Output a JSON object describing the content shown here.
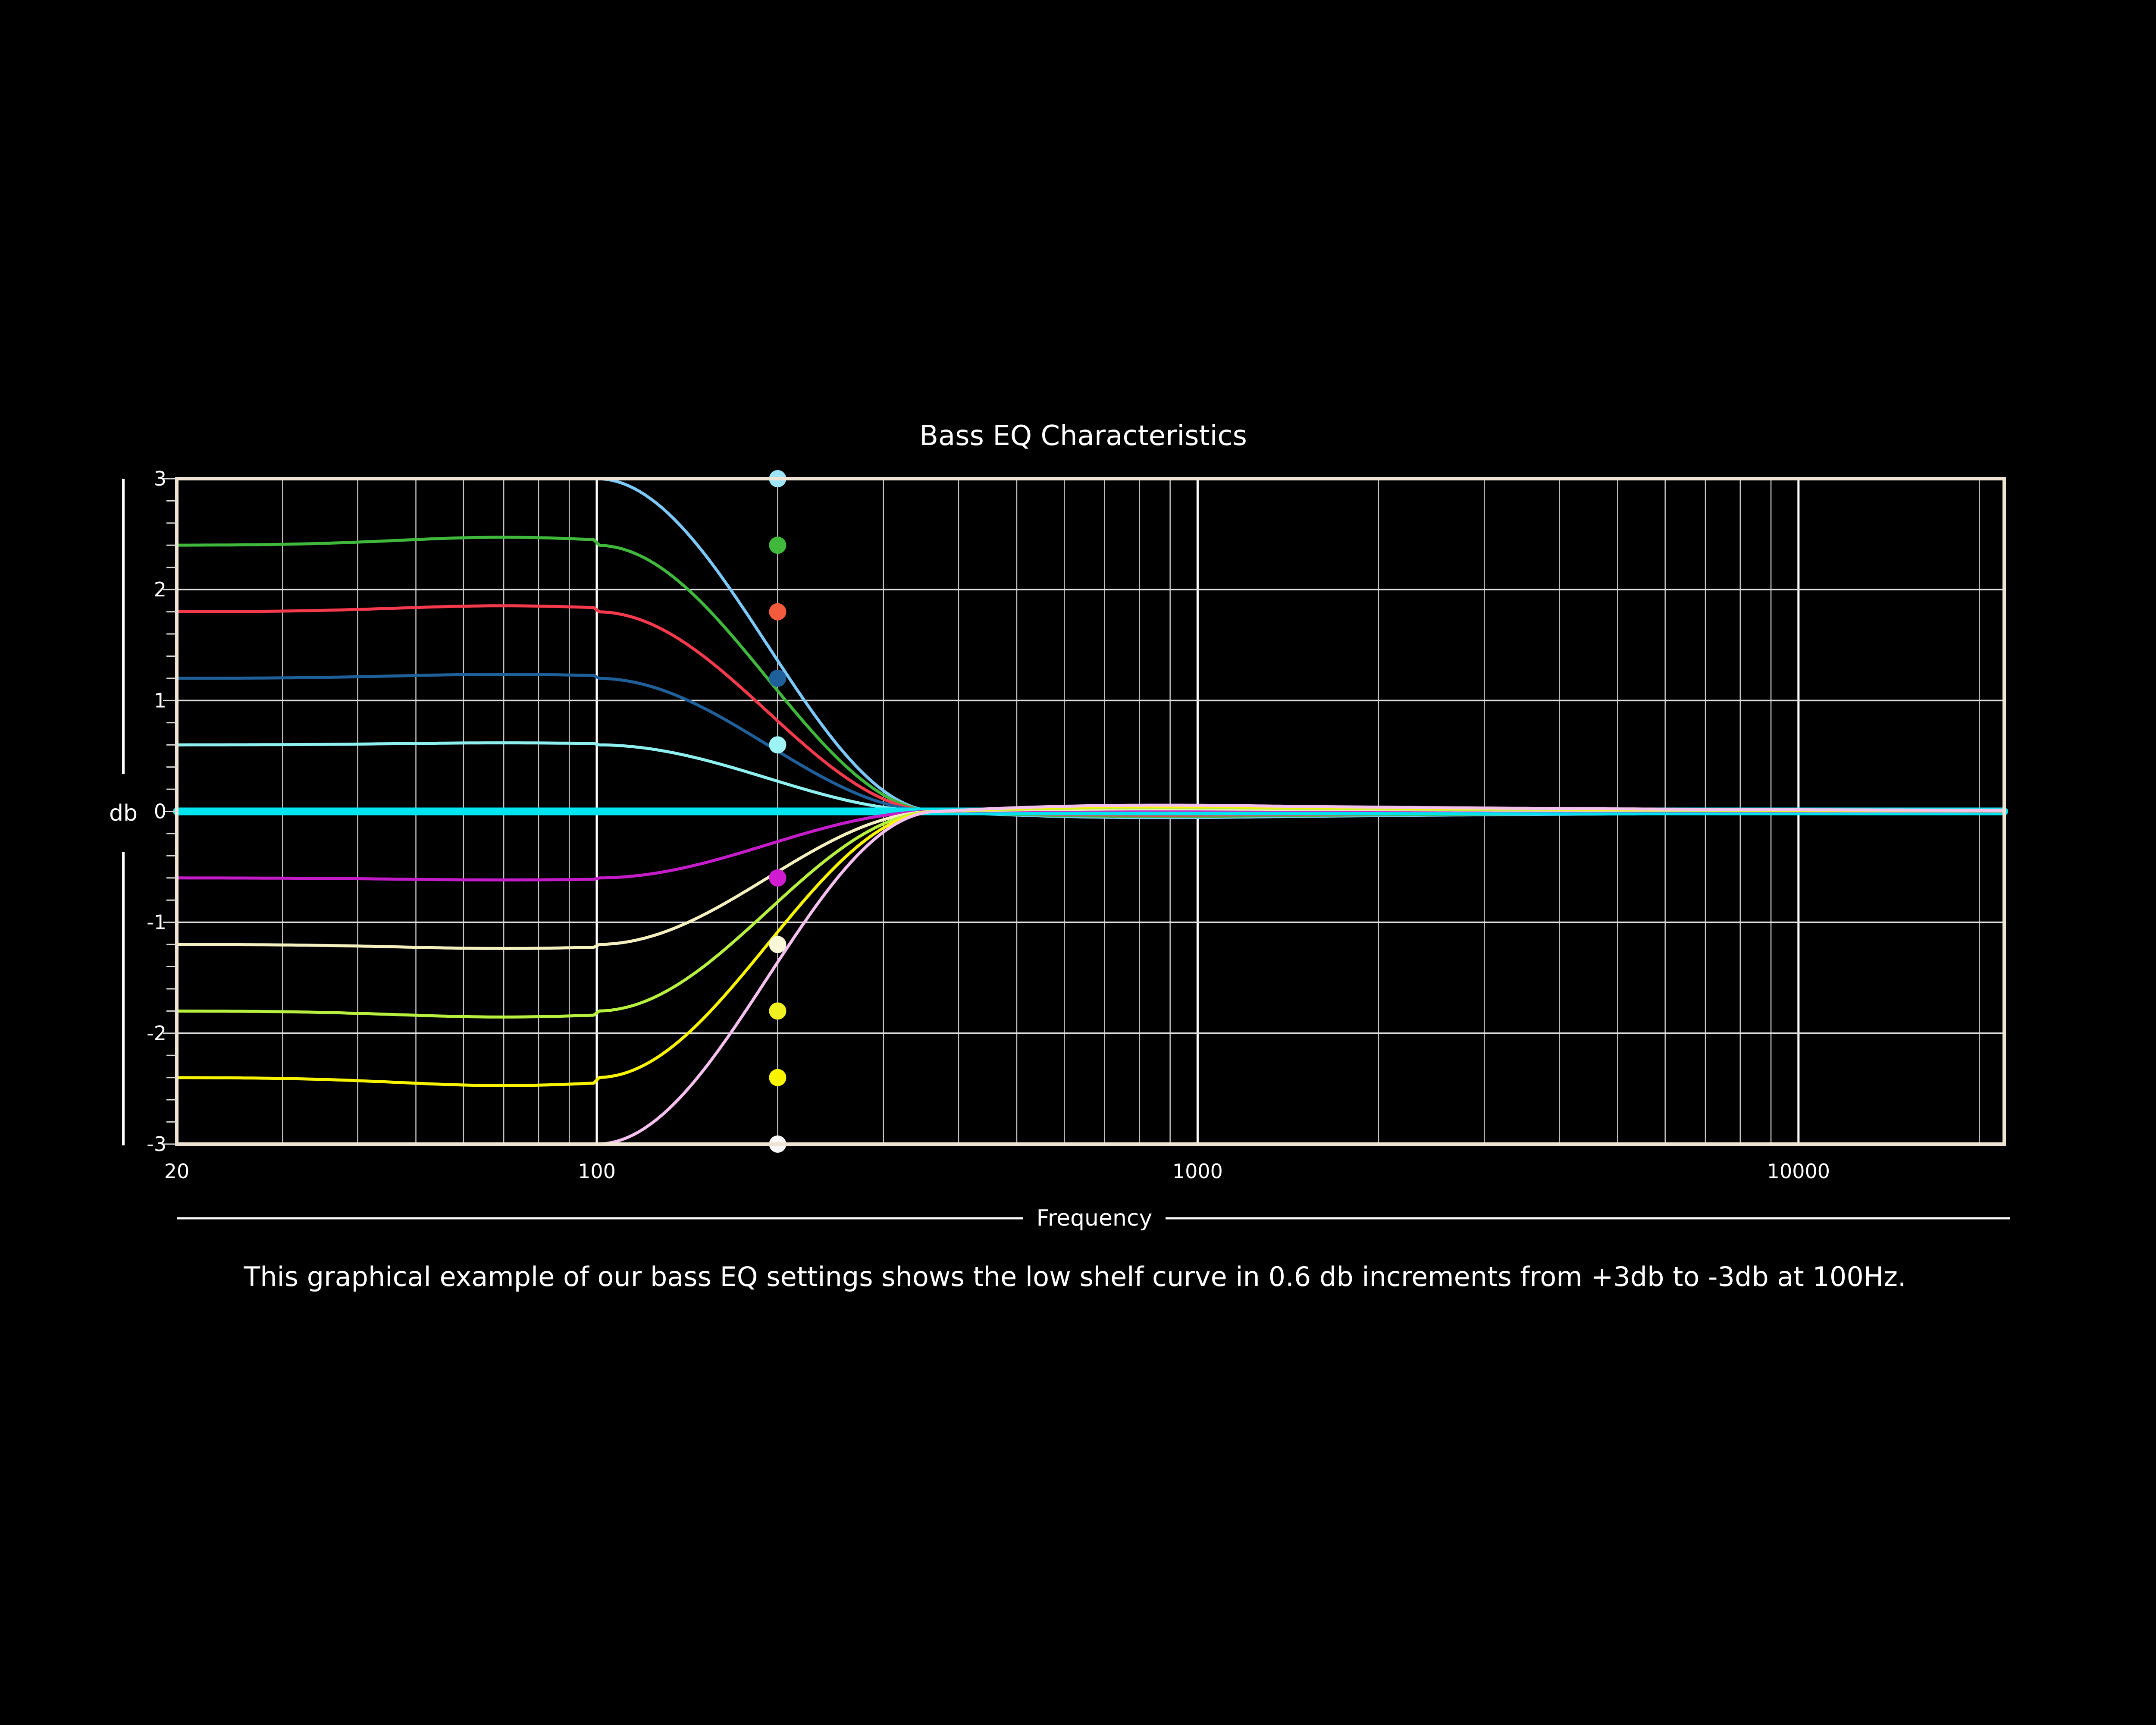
{
  "chart_data": {
    "type": "line",
    "title": "Bass EQ Characteristics",
    "xlabel": "Frequency",
    "ylabel": "db",
    "x_scale": "log",
    "xlim": [
      20,
      22000
    ],
    "ylim": [
      -3,
      3
    ],
    "x_ticks": [
      {
        "value": 20,
        "label": "20"
      },
      {
        "value": 100,
        "label": "100"
      },
      {
        "value": 1000,
        "label": "1000"
      },
      {
        "value": 10000,
        "label": "10000"
      }
    ],
    "y_ticks": [
      {
        "value": 3,
        "label": "3"
      },
      {
        "value": 2,
        "label": "2"
      },
      {
        "value": 1,
        "label": "1"
      },
      {
        "value": 0,
        "label": "0"
      },
      {
        "value": -1,
        "label": "-1"
      },
      {
        "value": -2,
        "label": "-2"
      },
      {
        "value": -3,
        "label": "-3"
      }
    ],
    "grid": true,
    "shelf_frequency_hz": 100,
    "marker_frequency_hz": 200,
    "transition_frequency_hz": 370,
    "series": [
      {
        "gain_db": 3.0,
        "color": "#7cc8f8"
      },
      {
        "gain_db": 2.4,
        "color": "#3fb83c"
      },
      {
        "gain_db": 1.8,
        "color": "#f43a4c"
      },
      {
        "gain_db": 1.2,
        "color": "#1f5f9a"
      },
      {
        "gain_db": 0.6,
        "color": "#8ff0f0"
      },
      {
        "gain_db": 0.0,
        "color": "#00e5f0"
      },
      {
        "gain_db": -0.6,
        "color": "#c41cc8"
      },
      {
        "gain_db": -1.2,
        "color": "#f4f0c0"
      },
      {
        "gain_db": -1.8,
        "color": "#b8f040"
      },
      {
        "gain_db": -2.4,
        "color": "#f8f400"
      },
      {
        "gain_db": -3.0,
        "color": "#f4c0f0"
      }
    ],
    "markers": [
      {
        "y": 3.0,
        "color": "#9ee4f8"
      },
      {
        "y": 2.4,
        "color": "#3fb83c"
      },
      {
        "y": 1.8,
        "color": "#f45a3c"
      },
      {
        "y": 1.2,
        "color": "#1f5f9a"
      },
      {
        "y": 0.6,
        "color": "#9ef4f4"
      },
      {
        "y": -0.6,
        "color": "#d01cd0"
      },
      {
        "y": -1.2,
        "color": "#f8f8d8"
      },
      {
        "y": -1.8,
        "color": "#f0f020"
      },
      {
        "y": -2.4,
        "color": "#f8f400"
      },
      {
        "y": -3.0,
        "color": "#f8f8f8"
      }
    ]
  },
  "caption": "This graphical example of our bass EQ settings shows the low shelf curve in 0.6 db increments from +3db to -3db at 100Hz."
}
